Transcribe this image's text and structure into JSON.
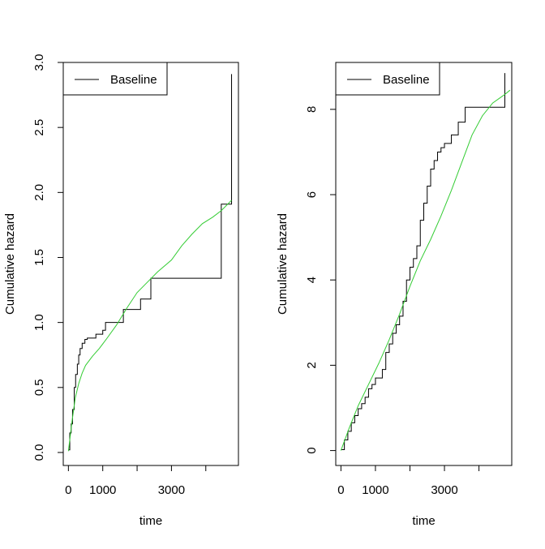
{
  "chart_data": [
    {
      "type": "line",
      "xlabel": "time",
      "ylabel": "Cumulative hazard",
      "xlim": [
        -150,
        4950
      ],
      "ylim": [
        -0.1,
        3.0
      ],
      "x_ticks": [
        0,
        1000,
        2000,
        3000,
        4000
      ],
      "x_tick_labels": [
        "0",
        "1000",
        "",
        "3000",
        ""
      ],
      "y_ticks": [
        0.0,
        0.5,
        1.0,
        1.5,
        2.0,
        2.5,
        3.0
      ],
      "y_tick_labels": [
        "0.0",
        "0.5",
        "1.0",
        "1.5",
        "2.0",
        "2.5",
        "3.0"
      ],
      "legend": {
        "position": "top-left",
        "entries": [
          "Baseline"
        ]
      },
      "series": [
        {
          "name": "Baseline",
          "color": "#000000",
          "style": "step",
          "x": [
            0,
            40,
            80,
            120,
            170,
            210,
            260,
            300,
            340,
            400,
            480,
            550,
            680,
            800,
            1000,
            1080,
            1600,
            2100,
            2400,
            4450,
            4750,
            4750
          ],
          "y": [
            0.02,
            0.15,
            0.22,
            0.33,
            0.5,
            0.6,
            0.68,
            0.75,
            0.8,
            0.84,
            0.87,
            0.88,
            0.88,
            0.91,
            0.94,
            1.0,
            1.1,
            1.18,
            1.34,
            1.91,
            1.91,
            2.91
          ]
        },
        {
          "color": "#33cc33",
          "style": "smooth",
          "x": [
            0,
            100,
            200,
            300,
            400,
            500,
            700,
            900,
            1100,
            1400,
            1700,
            2000,
            2300,
            2600,
            3000,
            3300,
            3600,
            3900,
            4200,
            4450,
            4750
          ],
          "y": [
            0.01,
            0.23,
            0.42,
            0.53,
            0.61,
            0.67,
            0.74,
            0.8,
            0.87,
            0.98,
            1.11,
            1.23,
            1.31,
            1.39,
            1.48,
            1.59,
            1.68,
            1.76,
            1.81,
            1.86,
            1.94
          ]
        }
      ]
    },
    {
      "type": "line",
      "xlabel": "time",
      "ylabel": "Cumulative hazard",
      "xlim": [
        -150,
        4950
      ],
      "ylim": [
        -0.35,
        9.1
      ],
      "x_ticks": [
        0,
        1000,
        2000,
        3000,
        4000
      ],
      "x_tick_labels": [
        "0",
        "1000",
        "",
        "3000",
        ""
      ],
      "y_ticks": [
        0,
        2,
        4,
        6,
        8
      ],
      "y_tick_labels": [
        "0",
        "2",
        "4",
        "6",
        "8"
      ],
      "legend": {
        "position": "top-left",
        "entries": [
          "Baseline"
        ]
      },
      "series": [
        {
          "name": "Baseline",
          "color": "#000000",
          "style": "step",
          "x": [
            0,
            100,
            200,
            300,
            400,
            500,
            600,
            700,
            800,
            900,
            1000,
            1100,
            1200,
            1300,
            1400,
            1500,
            1600,
            1700,
            1800,
            1900,
            2000,
            2100,
            2200,
            2300,
            2400,
            2500,
            2600,
            2700,
            2800,
            2900,
            3000,
            3200,
            3400,
            3600,
            4750,
            4750
          ],
          "y": [
            0.02,
            0.25,
            0.45,
            0.65,
            0.82,
            0.98,
            1.1,
            1.25,
            1.45,
            1.55,
            1.7,
            1.7,
            1.9,
            2.3,
            2.5,
            2.75,
            2.95,
            3.15,
            3.5,
            4.0,
            4.3,
            4.5,
            4.8,
            5.4,
            5.8,
            6.2,
            6.6,
            6.8,
            7.0,
            7.1,
            7.2,
            7.4,
            7.7,
            8.05,
            8.05,
            8.85
          ]
        },
        {
          "color": "#33cc33",
          "style": "smooth",
          "x": [
            0,
            250,
            500,
            800,
            1100,
            1400,
            1700,
            2000,
            2300,
            2600,
            2900,
            3200,
            3500,
            3800,
            4100,
            4400,
            4750,
            4900
          ],
          "y": [
            0.0,
            0.55,
            1.05,
            1.55,
            2.05,
            2.6,
            3.2,
            3.85,
            4.45,
            4.95,
            5.5,
            6.1,
            6.75,
            7.4,
            7.85,
            8.15,
            8.35,
            8.45
          ]
        }
      ]
    }
  ]
}
